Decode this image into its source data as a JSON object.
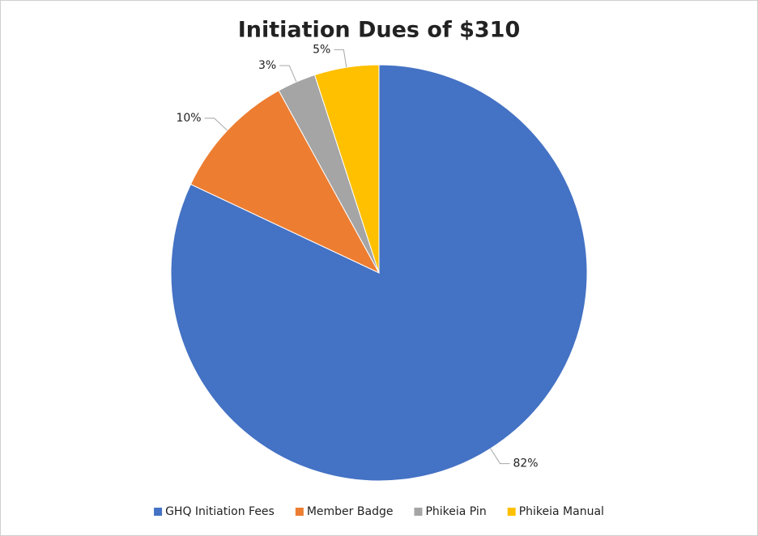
{
  "chart_data": {
    "type": "pie",
    "title": "Initiation Dues of $310",
    "categories": [
      "GHQ Initiation Fees",
      "Member Badge",
      "Phikeia Pin",
      "Phikeia Manual"
    ],
    "values": [
      82,
      10,
      3,
      5
    ],
    "value_labels": [
      "82%",
      "10%",
      "3%",
      "5%"
    ],
    "colors": [
      "#4472c4",
      "#ed7d31",
      "#a5a5a5",
      "#ffc000"
    ],
    "legend": "bottom"
  }
}
